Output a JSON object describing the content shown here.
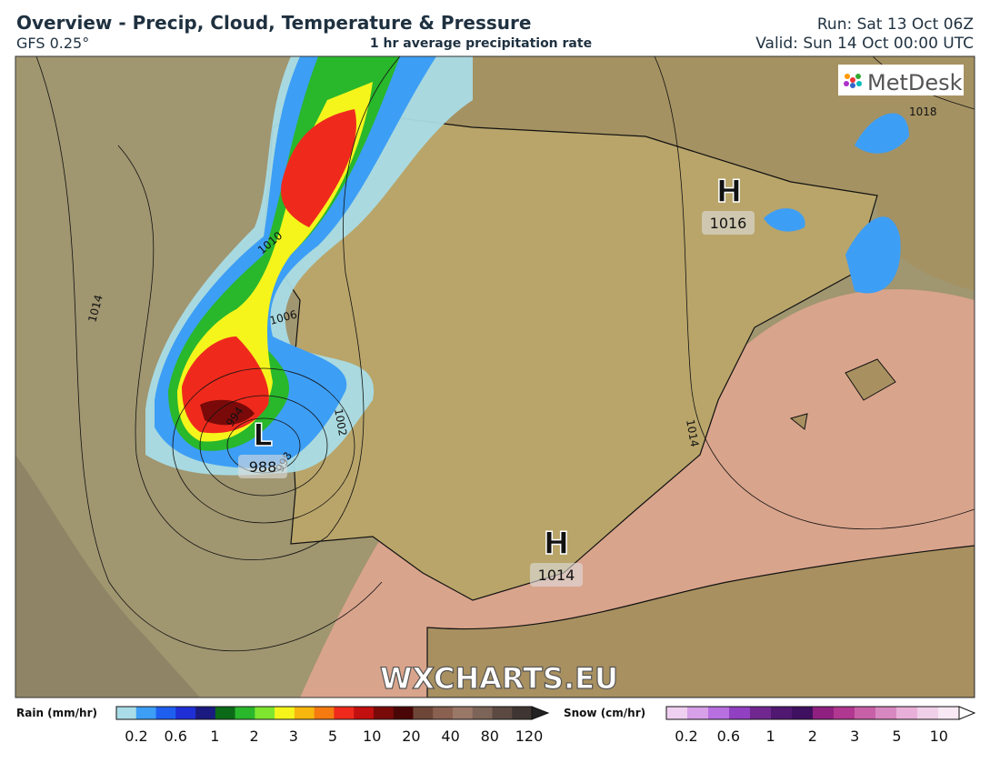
{
  "header": {
    "title": "Overview - Precip, Cloud, Temperature & Pressure",
    "model": "GFS 0.25°",
    "subtitle": "1 hr average precipitation rate",
    "run": "Run: Sat 13 Oct 06Z",
    "valid": "Valid: Sun 14 Oct 00:00 UTC"
  },
  "map": {
    "logo": "MetDesk",
    "watermark": "WXCHARTS.EU",
    "centers": [
      {
        "symbol": "H",
        "pressure": "1016"
      },
      {
        "symbol": "L",
        "pressure": "988"
      },
      {
        "symbol": "H",
        "pressure": "1014"
      }
    ],
    "isobar_labels": [
      "1018",
      "1010",
      "1014",
      "1006",
      "1002",
      "994",
      "998",
      "1014"
    ]
  },
  "legend": {
    "rain": {
      "title": "Rain (mm/hr)",
      "labels": [
        "0.2",
        "0.6",
        "1",
        "2",
        "3",
        "5",
        "10",
        "20",
        "40",
        "80",
        "120"
      ],
      "colors": [
        "#a9dce6",
        "#3d9ef5",
        "#1f5ff0",
        "#1e2fd6",
        "#1a1a80",
        "#0b6a17",
        "#29b72c",
        "#7fe52f",
        "#f5f51c",
        "#f7b70e",
        "#f57a10",
        "#ef2a1c",
        "#c20f0f",
        "#7a0a0a",
        "#4a0606",
        "#6e4638",
        "#8a6050",
        "#9a7868",
        "#7d6458",
        "#5c4a42",
        "#3f3633"
      ]
    },
    "snow": {
      "title": "Snow (cm/hr)",
      "labels": [
        "0.2",
        "0.6",
        "1",
        "2",
        "3",
        "5",
        "10"
      ],
      "colors": [
        "#f0d0f0",
        "#d8a0e8",
        "#b870e0",
        "#9040c0",
        "#702890",
        "#501870",
        "#401060",
        "#902080",
        "#b03890",
        "#c860a8",
        "#d888c0",
        "#e8b0d8",
        "#f0d0e8",
        "#f8e8f4"
      ]
    }
  }
}
